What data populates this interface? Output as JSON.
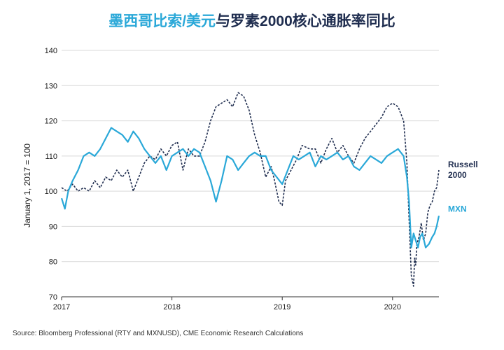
{
  "title": {
    "part_mxn": "墨西哥比索/美元",
    "part_rest": "与罗素2000核心通胀率同比"
  },
  "source": "Source: Bloomberg Professional (RTY and MXNUSD), CME Economic Research Calculations",
  "colors": {
    "mxn": "#2aa8d8",
    "russell": "#1f2d4f",
    "grid": "#d9d9d9",
    "axis": "#333333"
  },
  "chart_data": {
    "type": "line",
    "title": "墨西哥比索/美元与罗素2000核心通胀率同比",
    "xlabel": "",
    "ylabel": "January 1, 2017 = 100",
    "xlim": [
      2017.0,
      2020.42
    ],
    "ylim": [
      70,
      140
    ],
    "yticks": [
      70,
      80,
      90,
      100,
      110,
      120,
      130,
      140
    ],
    "xticks": [
      "2017",
      "2018",
      "2019",
      "2020"
    ],
    "grid": true,
    "legend": "inline labels at right end of series",
    "series": [
      {
        "name": "Russell 2000",
        "label_lines": [
          "Russell",
          "2000"
        ],
        "color": "#1f2d4f",
        "style": "dashed",
        "x": [
          2017.0,
          2017.05,
          2017.1,
          2017.15,
          2017.2,
          2017.25,
          2017.3,
          2017.35,
          2017.4,
          2017.45,
          2017.5,
          2017.55,
          2017.6,
          2017.65,
          2017.7,
          2017.75,
          2017.8,
          2017.85,
          2017.9,
          2017.95,
          2018.0,
          2018.05,
          2018.1,
          2018.15,
          2018.2,
          2018.25,
          2018.3,
          2018.35,
          2018.4,
          2018.45,
          2018.5,
          2018.55,
          2018.6,
          2018.65,
          2018.7,
          2018.75,
          2018.8,
          2018.85,
          2018.9,
          2018.93,
          2018.97,
          2019.0,
          2019.03,
          2019.08,
          2019.13,
          2019.18,
          2019.25,
          2019.3,
          2019.35,
          2019.4,
          2019.45,
          2019.5,
          2019.55,
          2019.6,
          2019.65,
          2019.7,
          2019.75,
          2019.8,
          2019.85,
          2019.9,
          2019.95,
          2020.0,
          2020.05,
          2020.1,
          2020.13,
          2020.15,
          2020.17,
          2020.19,
          2020.2,
          2020.21,
          2020.22,
          2020.24,
          2020.26,
          2020.28,
          2020.3,
          2020.32,
          2020.34,
          2020.36,
          2020.38,
          2020.4,
          2020.42
        ],
        "values": [
          101,
          100,
          102,
          100,
          101,
          100,
          103,
          101,
          104,
          103,
          106,
          104,
          106,
          100,
          104,
          108,
          110,
          109,
          112,
          110,
          113,
          114,
          106,
          112,
          110,
          110,
          114,
          120,
          124,
          125,
          126,
          124,
          128,
          127,
          123,
          116,
          111,
          104,
          107,
          103,
          97,
          96,
          103,
          106,
          109,
          113,
          112,
          112,
          108,
          112,
          115,
          111,
          113,
          110,
          108,
          112,
          115,
          117,
          119,
          121,
          124,
          125,
          124,
          120,
          108,
          92,
          76,
          73,
          81,
          79,
          85,
          87,
          91,
          86,
          88,
          94,
          96,
          97,
          100,
          101,
          106
        ]
      },
      {
        "name": "MXN",
        "label_lines": [
          "MXN"
        ],
        "color": "#2aa8d8",
        "style": "solid",
        "x": [
          2017.0,
          2017.03,
          2017.06,
          2017.1,
          2017.15,
          2017.2,
          2017.25,
          2017.3,
          2017.35,
          2017.4,
          2017.45,
          2017.5,
          2017.55,
          2017.6,
          2017.65,
          2017.7,
          2017.75,
          2017.8,
          2017.85,
          2017.9,
          2017.95,
          2018.0,
          2018.05,
          2018.1,
          2018.15,
          2018.2,
          2018.25,
          2018.3,
          2018.35,
          2018.4,
          2018.45,
          2018.5,
          2018.55,
          2018.6,
          2018.65,
          2018.7,
          2018.75,
          2018.8,
          2018.85,
          2018.9,
          2018.95,
          2019.0,
          2019.05,
          2019.1,
          2019.15,
          2019.2,
          2019.25,
          2019.3,
          2019.35,
          2019.4,
          2019.45,
          2019.5,
          2019.55,
          2019.6,
          2019.65,
          2019.7,
          2019.75,
          2019.8,
          2019.85,
          2019.9,
          2019.95,
          2020.0,
          2020.05,
          2020.1,
          2020.13,
          2020.15,
          2020.17,
          2020.19,
          2020.21,
          2020.23,
          2020.25,
          2020.27,
          2020.3,
          2020.33,
          2020.36,
          2020.38,
          2020.4,
          2020.42
        ],
        "values": [
          98,
          95,
          100,
          103,
          106,
          110,
          111,
          110,
          112,
          115,
          118,
          117,
          116,
          114,
          117,
          115,
          112,
          110,
          108,
          110,
          106,
          110,
          111,
          112,
          110,
          112,
          111,
          107,
          103,
          97,
          103,
          110,
          109,
          106,
          108,
          110,
          111,
          110,
          110,
          106,
          104,
          102,
          106,
          110,
          109,
          110,
          111,
          107,
          110,
          109,
          110,
          111,
          109,
          110,
          107,
          106,
          108,
          110,
          109,
          108,
          110,
          111,
          112,
          110,
          104,
          97,
          84,
          88,
          86,
          84,
          87,
          88,
          84,
          85,
          87,
          88,
          90,
          93
        ]
      }
    ]
  }
}
